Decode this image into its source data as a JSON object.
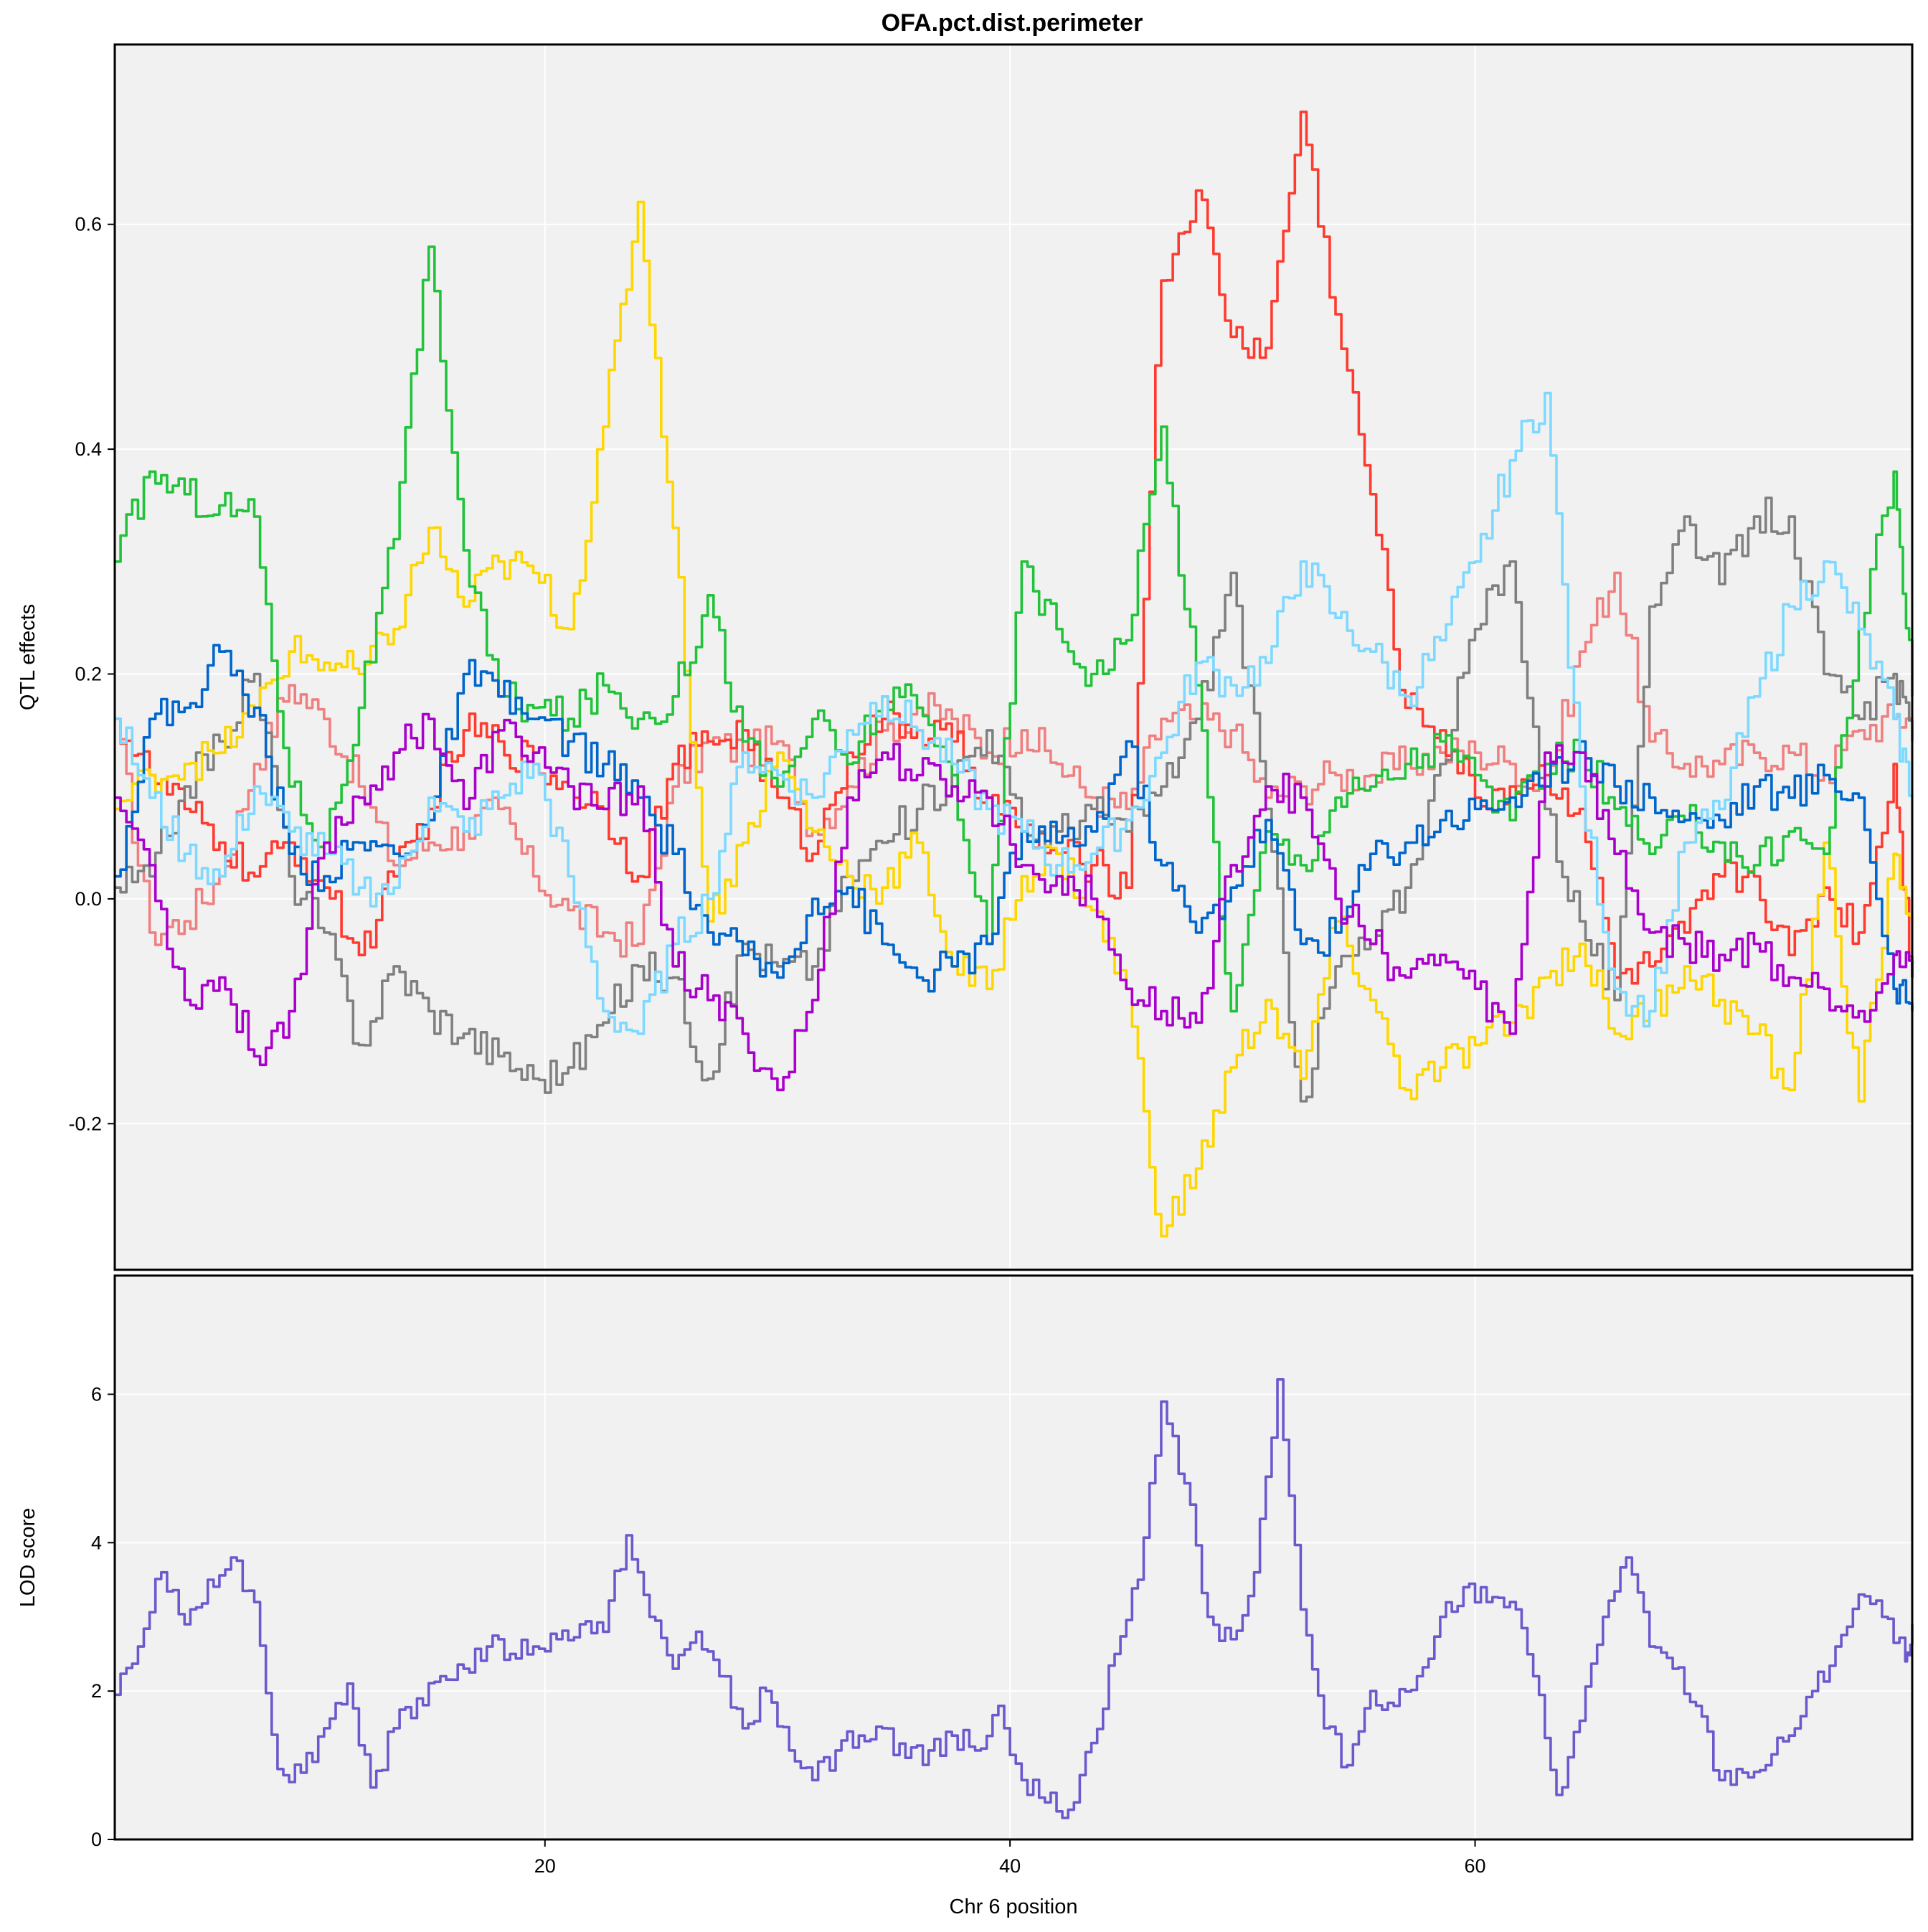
{
  "chart_data": [
    {
      "type": "line",
      "title": "OFA.pct.dist.perimeter",
      "xlabel": "",
      "ylabel": "QTL effects",
      "xlim": [
        1.5,
        78.8
      ],
      "ylim": [
        -0.33,
        0.76
      ],
      "x_ticks": [
        20,
        40,
        60
      ],
      "y_ticks": [
        -0.2,
        0.0,
        0.2,
        0.4,
        0.6
      ],
      "y_tick_labels": [
        "-0.2",
        "0.0",
        "0.2",
        "0.4",
        "0.6"
      ],
      "grid": true,
      "legend": "none",
      "x": [
        1.5,
        3,
        4.5,
        6,
        7.5,
        9,
        10.5,
        12,
        13.5,
        15,
        16.5,
        18,
        19.5,
        21,
        22.5,
        24,
        25.5,
        27,
        28.5,
        30,
        31.5,
        33,
        34.5,
        36,
        37.5,
        39,
        40.5,
        42,
        43.5,
        45,
        46.5,
        48,
        49.5,
        51,
        52.5,
        54,
        55.5,
        57,
        58.5,
        60,
        61.5,
        63,
        64.5,
        66,
        67.5,
        69,
        70.5,
        72,
        73.5,
        75,
        76.5,
        78,
        78.8
      ],
      "series": [
        {
          "color": "#f08080",
          "values": [
            0.16,
            -0.03,
            -0.02,
            0.02,
            0.12,
            0.19,
            0.16,
            0.1,
            0.03,
            0.05,
            0.06,
            0.08,
            0.02,
            -0.01,
            -0.03,
            -0.04,
            0.1,
            0.14,
            0.13,
            0.14,
            0.06,
            0.1,
            0.15,
            0.17,
            0.16,
            0.13,
            0.15,
            0.12,
            0.09,
            0.08,
            0.16,
            0.16,
            0.15,
            0.09,
            0.1,
            0.11,
            0.11,
            0.12,
            0.13,
            0.13,
            0.12,
            0.1,
            0.22,
            0.29,
            0.14,
            0.12,
            0.12,
            0.13,
            0.13,
            0.11,
            0.15,
            0.16,
            0.16
          ]
        },
        {
          "color": "#ff3b30",
          "values": [
            0.16,
            0.11,
            0.08,
            0.05,
            0.02,
            0.05,
            0.01,
            -0.05,
            0.02,
            0.08,
            0.15,
            0.14,
            0.12,
            0.1,
            0.08,
            0.02,
            0.12,
            0.14,
            0.15,
            0.09,
            0.04,
            0.13,
            0.16,
            0.15,
            0.14,
            0.09,
            0.06,
            0.04,
            0.03,
            0.01,
            0.55,
            0.63,
            0.5,
            0.49,
            0.7,
            0.52,
            0.36,
            0.17,
            0.15,
            0.09,
            0.1,
            0.11,
            0.08,
            -0.07,
            -0.06,
            -0.03,
            0.02,
            0.02,
            -0.05,
            0.01,
            -0.03,
            0.12,
            -0.07
          ]
        },
        {
          "color": "#808080",
          "values": [
            0.01,
            0.02,
            0.1,
            0.14,
            0.2,
            0.02,
            -0.03,
            -0.13,
            -0.06,
            -0.1,
            -0.12,
            -0.14,
            -0.16,
            -0.15,
            -0.11,
            -0.06,
            -0.07,
            -0.16,
            -0.04,
            -0.06,
            -0.06,
            0.02,
            0.05,
            0.08,
            0.11,
            0.15,
            0.06,
            0.06,
            0.08,
            0.06,
            0.1,
            0.16,
            0.29,
            0.08,
            -0.18,
            -0.06,
            -0.04,
            0.01,
            0.12,
            0.24,
            0.3,
            0.08,
            -0.02,
            -0.09,
            0.26,
            0.34,
            0.28,
            0.34,
            0.34,
            0.2,
            0.16,
            0.2,
            0.14
          ]
        },
        {
          "color": "#ffd700",
          "values": [
            0.08,
            0.11,
            0.12,
            0.13,
            0.17,
            0.22,
            0.21,
            0.2,
            0.24,
            0.33,
            0.26,
            0.3,
            0.29,
            0.24,
            0.42,
            0.62,
            0.33,
            -0.02,
            0.05,
            0.13,
            0.06,
            0.02,
            0.01,
            0.05,
            -0.06,
            -0.08,
            0.02,
            0.04,
            -0.01,
            -0.08,
            -0.3,
            -0.24,
            -0.15,
            -0.09,
            -0.16,
            -0.02,
            -0.09,
            -0.17,
            -0.15,
            -0.13,
            -0.11,
            -0.07,
            -0.04,
            -0.12,
            -0.1,
            -0.06,
            -0.09,
            -0.12,
            -0.17,
            0.05,
            -0.18,
            0.04,
            -0.02
          ]
        },
        {
          "color": "#22c33b",
          "values": [
            0.3,
            0.38,
            0.36,
            0.35,
            0.34,
            0.1,
            0.05,
            0.17,
            0.32,
            0.58,
            0.31,
            0.18,
            0.17,
            0.16,
            0.19,
            0.16,
            0.18,
            0.27,
            0.14,
            0.1,
            0.16,
            0.12,
            0.18,
            0.17,
            0.11,
            -0.04,
            0.3,
            0.24,
            0.2,
            0.23,
            0.42,
            0.19,
            -0.1,
            0.06,
            0.03,
            0.09,
            0.1,
            0.12,
            0.14,
            0.11,
            0.07,
            0.12,
            0.13,
            0.08,
            0.04,
            0.07,
            0.05,
            0.03,
            0.06,
            0.04,
            0.24,
            0.38,
            0.18
          ]
        },
        {
          "color": "#0066cc",
          "values": [
            0.02,
            0.16,
            0.17,
            0.22,
            0.17,
            0.04,
            0.02,
            0.05,
            0.04,
            0.07,
            0.2,
            0.18,
            0.16,
            0.14,
            0.12,
            0.09,
            0.04,
            -0.03,
            -0.05,
            -0.07,
            0.0,
            0.01,
            -0.04,
            -0.07,
            -0.06,
            -0.04,
            0.06,
            0.05,
            0.06,
            0.14,
            0.03,
            -0.03,
            0.01,
            0.07,
            -0.04,
            -0.03,
            0.04,
            0.05,
            0.07,
            0.08,
            0.09,
            0.1,
            0.14,
            0.1,
            0.09,
            0.07,
            0.07,
            0.1,
            0.09,
            0.11,
            0.09,
            -0.08,
            -0.1
          ]
        },
        {
          "color": "#7dd9ff",
          "values": [
            0.16,
            0.09,
            0.04,
            0.02,
            0.1,
            0.06,
            0.04,
            0.01,
            0.01,
            0.09,
            0.06,
            0.09,
            0.12,
            0.02,
            -0.1,
            -0.12,
            -0.04,
            0.0,
            0.13,
            0.11,
            0.09,
            0.15,
            0.18,
            0.15,
            0.12,
            0.08,
            0.06,
            0.03,
            0.04,
            0.07,
            0.13,
            0.21,
            0.19,
            0.21,
            0.3,
            0.25,
            0.22,
            0.18,
            0.23,
            0.3,
            0.39,
            0.45,
            0.1,
            -0.08,
            -0.1,
            0.05,
            0.08,
            0.18,
            0.26,
            0.3,
            0.24,
            0.16,
            0.09
          ]
        },
        {
          "color": "#aa00cc",
          "values": [
            0.09,
            0.03,
            -0.09,
            -0.07,
            -0.14,
            -0.1,
            0.05,
            0.09,
            0.13,
            0.16,
            0.08,
            0.15,
            0.13,
            0.1,
            0.08,
            0.1,
            -0.06,
            -0.09,
            -0.12,
            -0.17,
            -0.09,
            0.09,
            0.13,
            0.11,
            0.1,
            0.09,
            0.03,
            0.02,
            0.0,
            -0.08,
            -0.1,
            -0.11,
            0.03,
            0.1,
            0.09,
            0.0,
            -0.04,
            -0.07,
            -0.05,
            -0.08,
            -0.12,
            0.13,
            0.13,
            0.04,
            -0.03,
            -0.04,
            -0.05,
            -0.04,
            -0.07,
            -0.08,
            -0.1,
            -0.05,
            -0.07
          ]
        }
      ]
    },
    {
      "type": "line",
      "title": "",
      "xlabel": "Chr 6 position",
      "ylabel": "LOD score",
      "xlim": [
        1.5,
        78.8
      ],
      "ylim": [
        0,
        7.6
      ],
      "x_ticks": [
        20,
        40,
        60
      ],
      "x_tick_labels": [
        "20",
        "40",
        "60"
      ],
      "y_ticks": [
        0,
        2,
        4,
        6
      ],
      "y_tick_labels": [
        "0",
        "2",
        "4",
        "6"
      ],
      "grid": true,
      "legend": "none",
      "x": [
        1.5,
        2.5,
        3.5,
        4.5,
        5.5,
        6.5,
        7.5,
        8.5,
        9.5,
        10.5,
        11.5,
        12.5,
        13.5,
        14.5,
        15.5,
        16.5,
        17.5,
        18.5,
        19.5,
        20.5,
        21.5,
        22.5,
        23.5,
        24.5,
        25.5,
        26.5,
        27.5,
        28.5,
        29.5,
        30.5,
        31.5,
        32.5,
        33.5,
        34.5,
        35.5,
        36.5,
        37.5,
        38.5,
        39.5,
        40.5,
        41.5,
        42.5,
        43.5,
        44.5,
        45.5,
        46.5,
        47.5,
        48.5,
        49.5,
        50.5,
        51.5,
        52.5,
        53.5,
        54.5,
        55.5,
        56.5,
        57.5,
        58.5,
        59.5,
        60.5,
        61.5,
        62.5,
        63.5,
        64.5,
        65.5,
        66.5,
        67.5,
        68.5,
        69.5,
        70.5,
        71.5,
        72.5,
        73.5,
        74.5,
        75.5,
        76.5,
        77.5,
        78.5,
        78.8
      ],
      "series": [
        {
          "color": "#6a5acd",
          "values": [
            1.95,
            2.6,
            3.6,
            2.9,
            3.5,
            3.8,
            3.2,
            0.95,
            0.9,
            1.5,
            2.1,
            0.7,
            1.5,
            1.9,
            2.2,
            2.3,
            2.6,
            2.5,
            2.6,
            2.7,
            2.9,
            2.8,
            4.1,
            3.0,
            2.3,
            2.8,
            2.2,
            1.5,
            2.0,
            1.2,
            0.8,
            1.2,
            1.4,
            1.5,
            1.1,
            1.2,
            1.4,
            1.2,
            1.8,
            0.8,
            0.5,
            0.4,
            1.3,
            2.5,
            3.5,
            5.9,
            4.8,
            3.0,
            2.7,
            3.6,
            6.2,
            3.1,
            1.5,
            1.0,
            2.0,
            1.8,
            2.2,
            3.0,
            3.4,
            3.2,
            3.2,
            2.2,
            0.6,
            1.6,
            3.0,
            3.8,
            2.6,
            2.3,
            1.8,
            0.8,
            0.9,
            1.0,
            1.4,
            2.0,
            2.6,
            3.3,
            3.0,
            2.4,
            2.9
          ]
        }
      ]
    }
  ]
}
